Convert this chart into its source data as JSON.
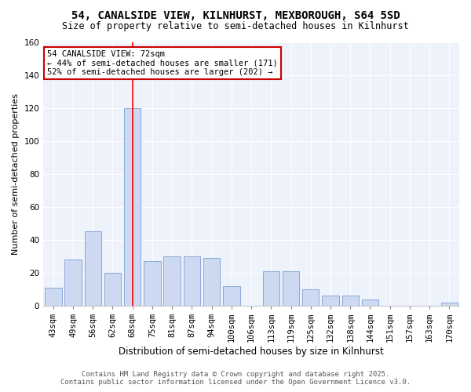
{
  "title1": "54, CANALSIDE VIEW, KILNHURST, MEXBOROUGH, S64 5SD",
  "title2": "Size of property relative to semi-detached houses in Kilnhurst",
  "xlabel": "Distribution of semi-detached houses by size in Kilnhurst",
  "ylabel": "Number of semi-detached properties",
  "categories": [
    "43sqm",
    "49sqm",
    "56sqm",
    "62sqm",
    "68sqm",
    "75sqm",
    "81sqm",
    "87sqm",
    "94sqm",
    "100sqm",
    "106sqm",
    "113sqm",
    "119sqm",
    "125sqm",
    "132sqm",
    "138sqm",
    "144sqm",
    "151sqm",
    "157sqm",
    "163sqm",
    "170sqm"
  ],
  "values": [
    11,
    28,
    45,
    20,
    120,
    27,
    30,
    30,
    29,
    12,
    0,
    21,
    21,
    10,
    6,
    6,
    4,
    0,
    0,
    0,
    2
  ],
  "bar_color": "#ccd9f0",
  "bar_edge_color": "#7a9fd4",
  "red_line_index": 4,
  "ylim": [
    0,
    160
  ],
  "yticks": [
    0,
    20,
    40,
    60,
    80,
    100,
    120,
    140,
    160
  ],
  "annotation_title": "54 CANALSIDE VIEW: 72sqm",
  "annotation_line1": "← 44% of semi-detached houses are smaller (171)",
  "annotation_line2": "52% of semi-detached houses are larger (202) →",
  "footer1": "Contains HM Land Registry data © Crown copyright and database right 2025.",
  "footer2": "Contains public sector information licensed under the Open Government Licence v3.0.",
  "bg_color": "#ffffff",
  "plot_bg_color": "#eef2fb",
  "grid_color": "#ffffff",
  "annotation_box_color": "#ffffff",
  "annotation_box_edge": "#cc0000",
  "title1_fontsize": 10,
  "title2_fontsize": 8.5,
  "ylabel_fontsize": 8,
  "xlabel_fontsize": 8.5,
  "tick_fontsize": 7.5,
  "footer_fontsize": 6.5,
  "ann_fontsize": 7.5
}
